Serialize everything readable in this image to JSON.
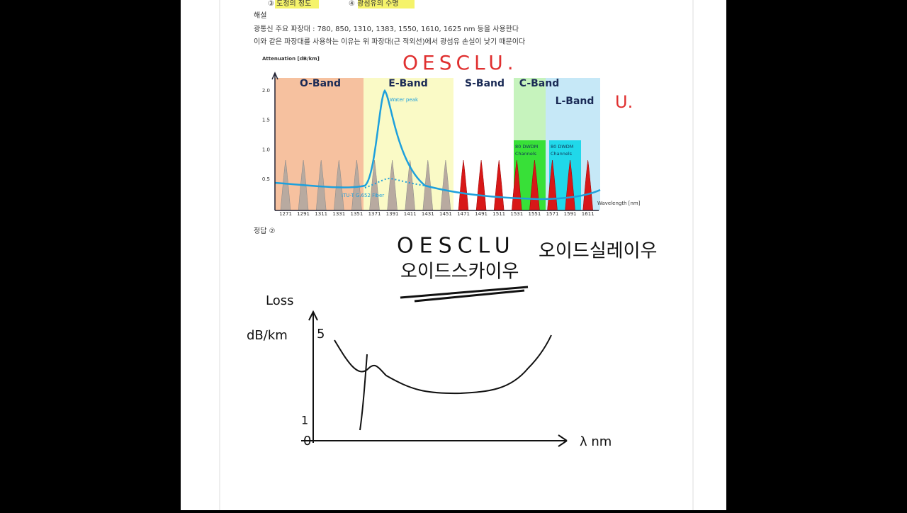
{
  "header": {
    "options": [
      "③ 도청의 정도",
      "④ 광섬유의 수명"
    ]
  },
  "explanation": {
    "label": "해설",
    "lines": [
      "광통신 주요 파장대 :  780, 850, 1310, 1383, 1550, 1610, 1625 nm 등을 사용한다",
      "이와 같은 파장대를 사용하는 이유는 위 파장대(근 적외선)에서 광섬유 손실이 낮기 때문이다"
    ]
  },
  "figure": {
    "y_axis_label": "Attenuation [dB/km]",
    "x_axis_label": "Wavelength [nm]",
    "yticks": [
      "2.0",
      "1.5",
      "1.0",
      "0.5"
    ],
    "xticks": [
      "1271",
      "1291",
      "1311",
      "1331",
      "1351",
      "1371",
      "1391",
      "1411",
      "1431",
      "1451",
      "1471",
      "1491",
      "1511",
      "1531",
      "1551",
      "1571",
      "1591",
      "1611"
    ],
    "bands": [
      "O-Band",
      "E-Band",
      "S-Band",
      "C-Band",
      "L-Band"
    ],
    "channels": [
      "80 DWDM Channels",
      "80 DWDM Channels"
    ],
    "annotations": [
      "Water peak",
      "ITU-T G.652 Fiber"
    ]
  },
  "answer": "정답 ②",
  "handwriting": {
    "red_top": "OESCLU.",
    "red_side": "U.",
    "black_line1": "OESCLU",
    "black_line2": "오이드스카이우",
    "black_side": "오이드실레이우",
    "sketch": {
      "y_label": "Loss",
      "y_unit": "dB/km",
      "y_high": "5",
      "y_low": "1",
      "origin": "0",
      "x_label": "λ nm"
    }
  }
}
